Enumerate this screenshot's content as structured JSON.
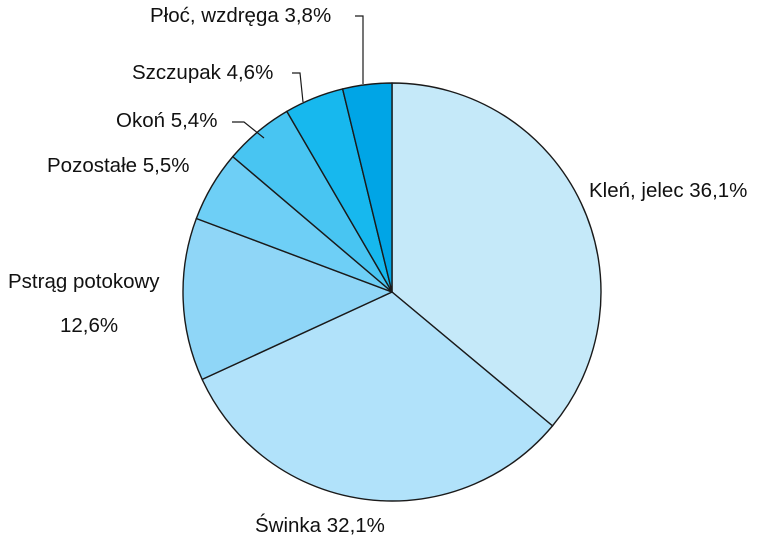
{
  "chart_data": {
    "type": "pie",
    "slices": [
      {
        "label": "Kleń, jelec 36,1%",
        "value": 36.1,
        "color": "#c5e9f9"
      },
      {
        "label": "Świnka 32,1%",
        "value": 32.1,
        "color": "#b1e2fa"
      },
      {
        "label": "Pstrąg potokowy",
        "label2": "12,6%",
        "value": 12.6,
        "color": "#8fd6f7"
      },
      {
        "label": "Pozostałe 5,5%",
        "value": 5.5,
        "color": "#6ecff6"
      },
      {
        "label": "Okoń 5,4%",
        "value": 5.4,
        "color": "#48c5f2"
      },
      {
        "label": "Szczupak 4,6%",
        "value": 4.6,
        "color": "#17b8ee"
      },
      {
        "label": "Płoć, wzdręga 3,8%",
        "value": 3.8,
        "color": "#00a5e6"
      }
    ]
  }
}
